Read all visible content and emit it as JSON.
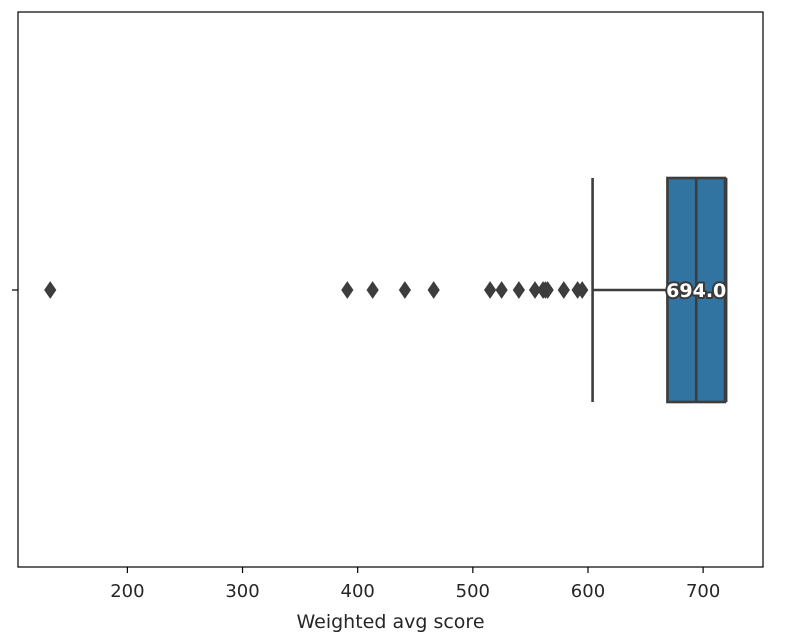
{
  "chart_data": {
    "type": "box",
    "orientation": "horizontal",
    "xlabel": "Weighted avg score",
    "xlim": [
      105,
      752
    ],
    "xticks": [
      200,
      300,
      400,
      500,
      600,
      700
    ],
    "box": {
      "q1": 669,
      "median": 694,
      "q3": 719,
      "whisker_low": 604,
      "whisker_high": 720,
      "outliers": [
        133,
        391,
        413,
        441,
        466,
        515,
        525,
        540,
        554,
        561,
        563,
        565,
        579,
        591,
        595
      ]
    },
    "annotation": "694.0",
    "colors": {
      "box_fill": "#3274a1",
      "line": "#3d3d3d",
      "frame": "#000000"
    }
  }
}
